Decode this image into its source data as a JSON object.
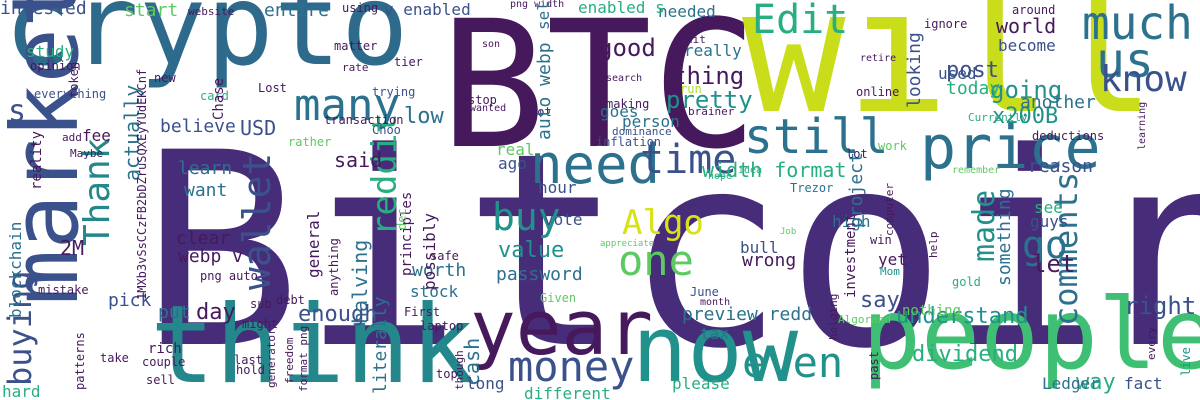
{
  "palette": {
    "background": "#ffffff",
    "dark_purple": "#46195c",
    "indigo": "#472c7a",
    "blue": "#3b518b",
    "slate_blue": "#2c718e",
    "teal": "#21918c",
    "green_teal": "#28ae80",
    "green": "#5ec962",
    "lime": "#addc30",
    "yellow": "#d8e219"
  },
  "words": {
    "bitcoin": "Bitcoin",
    "btc": "BTC",
    "will": "will",
    "crypto": "crypto",
    "think": "think",
    "people": "people",
    "now": "now",
    "year": "year",
    "make": "make",
    "market": "market",
    "price": "price",
    "need": "need",
    "still": "still",
    "much": "much",
    "us": "us",
    "know": "know",
    "many": "many",
    "edit": "Edit",
    "money": "money",
    "even": "even",
    "one": "one",
    "algo": "Algo",
    "buy": "buy",
    "time": "time",
    "go": "go",
    "thank": "Thank",
    "wallet": "wallet",
    "reddit": "reddit",
    "comments": "comments",
    "buying": "buying",
    "s": "s",
    "made": "made",
    "thing": "thing",
    "pretty": "pretty",
    "going": "going",
    "post": "post",
    "world": "world",
    "become": "become",
    "x200b": "x200B",
    "used": "used",
    "today": "today",
    "another": "another",
    "looking": "looking",
    "good": "good",
    "really": "really",
    "usd": "USD",
    "believe": "believe",
    "actually": "actually",
    "low": "low",
    "said": "said",
    "learn": "learn",
    "want": "want",
    "clear": "clear",
    "webp_v": "webp v",
    "two_m": "2M",
    "value": "value",
    "password": "password",
    "width_format": "width format",
    "hour": "hour",
    "ago": "ago",
    "real": "real",
    "vote": "vote",
    "worth": "worth",
    "halving": "halving",
    "enough": "enough",
    "day": "day",
    "put": "put",
    "pick": "pick",
    "stock": "stock",
    "cash": "cash",
    "tax": "tax",
    "preview_redd": "preview redd",
    "understand": "understand",
    "dividend": "dividend",
    "way": "way",
    "right": "right",
    "let": "let",
    "say": "say",
    "something": "something",
    "reason": "reason",
    "project": "project",
    "wrong": "wrong",
    "bull": "bull",
    "high": "high",
    "yet": "yet",
    "guys": "guys",
    "see": "see",
    "ledger": "Ledger",
    "fact": "fact",
    "nothing": "nothing",
    "please": "please",
    "different": "different",
    "long": "long",
    "literally": "literally",
    "person": "person",
    "goes": "goes",
    "needed": "needed",
    "enabled_s": "enabled s",
    "v_enabled": "v enabled",
    "entire": "entire",
    "start": "start",
    "invested": "invested",
    "study": "study",
    "opinion": "opinion",
    "everything": "everything",
    "fee": "fee",
    "trying": "trying",
    "transaction": "transaction",
    "dominance": "dominance",
    "inflation": "inflation",
    "online": "online",
    "currently": "Currently",
    "deductions": "deductions",
    "choo": "Choo",
    "rather": "rather",
    "making": "making",
    "run": "run",
    "got": "got",
    "stop": "stop",
    "wanted": "wanted",
    "around": "around",
    "ignore": "ignore",
    "retire": "retire",
    "work": "work",
    "lot": "lot",
    "remember": "remember",
    "hope": "hope",
    "idea": "idea",
    "trezor": "Trezor",
    "win": "win",
    "mom": "Mom",
    "gold": "gold",
    "algorand": "Algorand",
    "june": "June",
    "month": "month",
    "given": "Given",
    "first": "First",
    "laptop": "laptop",
    "debt": "debt",
    "sub": "sub",
    "might": "might",
    "last": "last",
    "hold": "hold",
    "top": "top",
    "rich": "rich",
    "couple": "couple",
    "take": "take",
    "sell": "sell",
    "hard": "hard",
    "mistake": "mistake",
    "safe": "safe",
    "card": "card",
    "lost": "Lost",
    "new": "new",
    "rate": "rate",
    "tier": "tier",
    "matter": "matter",
    "using": "using",
    "website": "website",
    "png_width": "png width",
    "son": "son",
    "hit": "hit",
    "search": "search",
    "brainer": "brainer",
    "appreciate": "appreciate",
    "job": "Job",
    "maybe": "Maybe",
    "add": "add",
    "png_auto": "png auto",
    "blockchain": "blockchain",
    "reality": "reality",
    "token": "token",
    "chase": "Chase",
    "long_hash": "1MXb3vSsCCzFB2bDZruSQXEyYUdEKCnf",
    "general": "general",
    "possibly": "possibly",
    "principles": "principles",
    "anything": "anything",
    "generator": "generator",
    "freedom": "freedom",
    "format_png": "format png",
    "patterns": "patterns",
    "though": "though",
    "auto_webp": "auto webp",
    "selling": "selling",
    "dec_small": "dec",
    "investment": "investment",
    "computer": "computer",
    "help": "help",
    "holding": "holding",
    "past": "past",
    "every": "every",
    "live": "live",
    "learning": "learning"
  }
}
